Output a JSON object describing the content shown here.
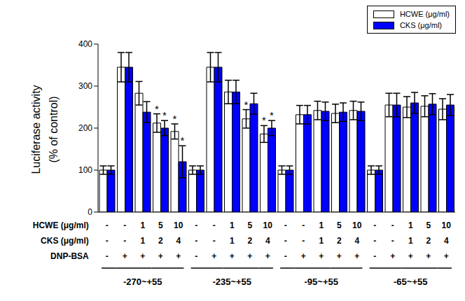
{
  "chart_data": {
    "type": "bar",
    "y_label": "Luciferase activity\n(% of control)",
    "ylim": [
      0,
      400
    ],
    "yticks": [
      0,
      100,
      200,
      300,
      400
    ],
    "grid": false,
    "legend": "upper right",
    "significance_label": "*",
    "series": [
      {
        "name": "HCWE (μg/ml)",
        "color": "#ffffff",
        "values": [
          100,
          345,
          283,
          212,
          192,
          100,
          345,
          286,
          222,
          186,
          100,
          232,
          242,
          235,
          242,
          100,
          255,
          250,
          252,
          245
        ],
        "errors": [
          10,
          35,
          28,
          22,
          18,
          10,
          35,
          28,
          22,
          20,
          10,
          22,
          22,
          22,
          22,
          10,
          28,
          25,
          25,
          25
        ],
        "significant": [
          false,
          false,
          false,
          true,
          true,
          false,
          false,
          false,
          true,
          true,
          false,
          false,
          false,
          false,
          false,
          false,
          false,
          false,
          false,
          false
        ]
      },
      {
        "name": "CKS (μg/ml)",
        "color": "#0000ff",
        "values": [
          100,
          345,
          238,
          200,
          120,
          100,
          345,
          286,
          258,
          200,
          100,
          232,
          240,
          238,
          240,
          100,
          255,
          260,
          257,
          255
        ],
        "errors": [
          10,
          35,
          25,
          18,
          38,
          10,
          35,
          28,
          25,
          18,
          10,
          22,
          22,
          22,
          22,
          10,
          28,
          25,
          25,
          25
        ],
        "significant": [
          false,
          false,
          false,
          true,
          true,
          false,
          false,
          false,
          false,
          true,
          false,
          false,
          false,
          false,
          false,
          false,
          false,
          false,
          false,
          false
        ]
      }
    ],
    "x_table": {
      "rows": [
        {
          "label": "HCWE (μg/ml)",
          "values": [
            "-",
            "-",
            "1",
            "5",
            "10",
            "-",
            "-",
            "1",
            "5",
            "10",
            "-",
            "-",
            "1",
            "5",
            "10",
            "-",
            "-",
            "1",
            "5",
            "10"
          ]
        },
        {
          "label": "CKS (μg/ml)",
          "values": [
            "-",
            "-",
            "1",
            "2",
            "4",
            "-",
            "-",
            "1",
            "2",
            "4",
            "-",
            "-",
            "1",
            "2",
            "4",
            "-",
            "-",
            "1",
            "2",
            "4"
          ]
        },
        {
          "label": "DNP-BSA",
          "values": [
            "-",
            "+",
            "+",
            "+",
            "+",
            "-",
            "+",
            "+",
            "+",
            "+",
            "-",
            "+",
            "+",
            "+",
            "+",
            "-",
            "+",
            "+",
            "+",
            "+"
          ]
        }
      ],
      "groups": [
        "-270~+55",
        "-235~+55",
        "-95~+55",
        "-65~+55"
      ]
    }
  }
}
